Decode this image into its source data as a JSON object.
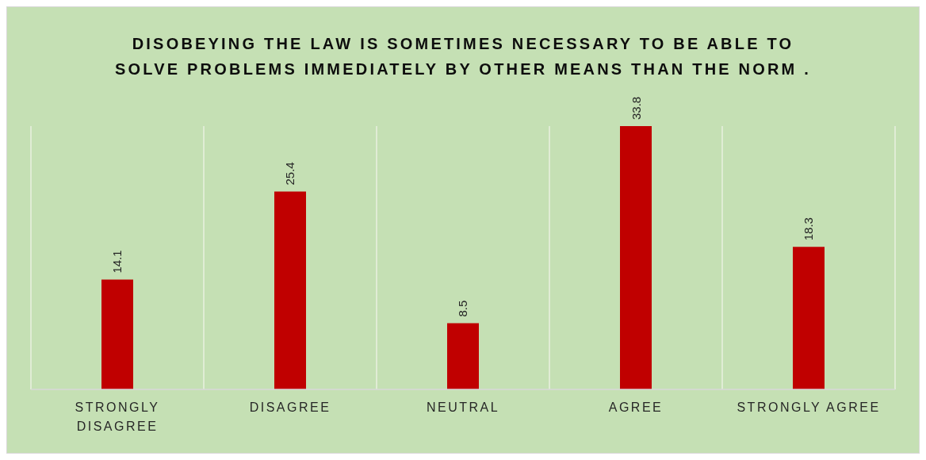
{
  "chart_data": {
    "type": "bar",
    "title": "DISOBEYING THE LAW IS SOMETIMES NECESSARY TO BE ABLE TO SOLVE PROBLEMS IMMEDIATELY BY OTHER MEANS THAN THE NORM .",
    "categories": [
      "STRONGLY DISAGREE",
      "DISAGREE",
      "NEUTRAL",
      "AGREE",
      "STRONGLY AGREE"
    ],
    "values": [
      14.1,
      25.4,
      8.5,
      33.8,
      18.3
    ],
    "color": "#c00000",
    "data_labels": true,
    "grid": "x"
  }
}
